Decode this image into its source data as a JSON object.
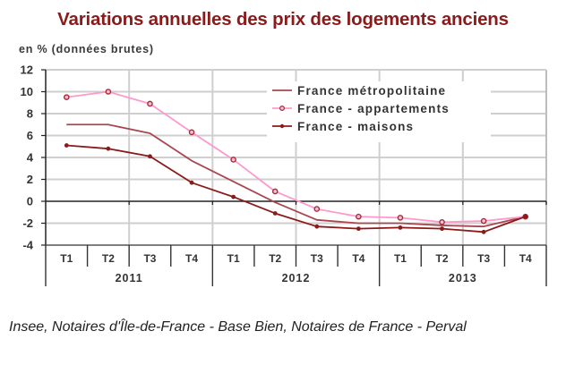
{
  "title": "Variations annuelles des prix des logements anciens",
  "unit_label": "en % (données brutes)",
  "source": "Insee, Notaires d'Île-de-France - Base Bien, Notaires de France - Perval",
  "chart_data": {
    "type": "line",
    "title": "Variations annuelles des prix des logements anciens",
    "ylabel": "en % (données brutes)",
    "xlabel": "",
    "ylim": [
      -4,
      12
    ],
    "yticks": [
      12,
      10,
      8,
      6,
      4,
      2,
      0,
      -2,
      -4
    ],
    "grid": true,
    "legend_position": "top-right",
    "categories": [
      "T1",
      "T2",
      "T3",
      "T4",
      "T1",
      "T2",
      "T3",
      "T4",
      "T1",
      "T2",
      "T3",
      "T4"
    ],
    "groups": [
      {
        "label": "2011",
        "span": 4
      },
      {
        "label": "2012",
        "span": 4
      },
      {
        "label": "2013",
        "span": 4
      }
    ],
    "series": [
      {
        "name": "France métropolitaine",
        "color": "#a8474f",
        "marker": "none",
        "values": [
          7.0,
          7.0,
          6.2,
          3.7,
          1.8,
          -0.1,
          -1.7,
          -2.0,
          -2.0,
          -2.2,
          -2.3,
          -1.4
        ]
      },
      {
        "name": "France - appartements",
        "color": "#ff99cc",
        "marker": "circle-open",
        "marker_color": "#a52a3a",
        "values": [
          9.5,
          10.0,
          8.9,
          6.3,
          3.8,
          0.9,
          -0.7,
          -1.4,
          -1.5,
          -1.9,
          -1.8,
          -1.4
        ]
      },
      {
        "name": "France - maisons",
        "color": "#8b1a1a",
        "marker": "dot",
        "marker_color": "#8b1a1a",
        "values": [
          5.1,
          4.8,
          4.1,
          1.7,
          0.4,
          -1.1,
          -2.3,
          -2.5,
          -2.4,
          -2.5,
          -2.8,
          -1.4
        ]
      }
    ]
  }
}
